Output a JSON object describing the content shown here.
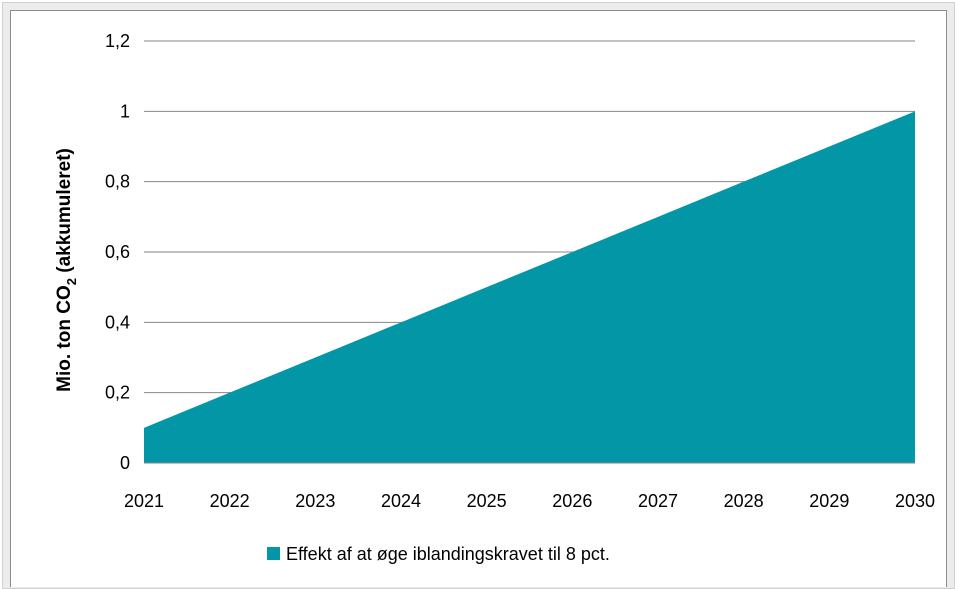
{
  "chart_data": {
    "type": "area",
    "x": [
      "2021",
      "2022",
      "2023",
      "2024",
      "2025",
      "2026",
      "2027",
      "2028",
      "2029",
      "2030"
    ],
    "series": [
      {
        "name": "Effekt af at øge iblandingskravet til 8 pct.",
        "values": [
          0.1,
          0.2,
          0.3,
          0.4,
          0.5,
          0.6,
          0.7,
          0.8,
          0.9,
          1.0
        ],
        "color": "#0396a6"
      }
    ],
    "ylabel_main": "Mio. ton CO",
    "ylabel_sub": "2",
    "ylabel_tail": " (akkumuleret)",
    "ylim": [
      0,
      1.2
    ],
    "yticks": [
      "0",
      "0,2",
      "0,4",
      "0,6",
      "0,8",
      "1",
      "1,2"
    ],
    "grid": true,
    "legend": "bottom",
    "gridline_color": "#868686"
  }
}
